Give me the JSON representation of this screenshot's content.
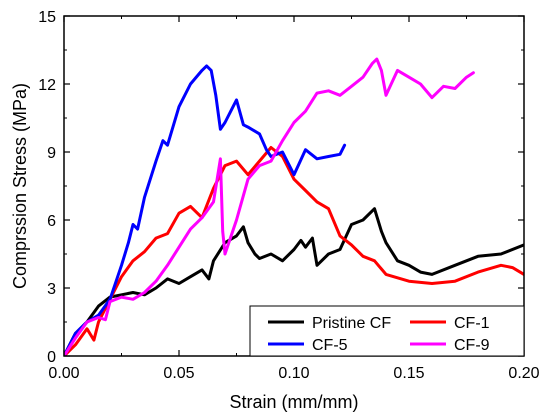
{
  "chart_data": {
    "type": "line",
    "title": "",
    "xlabel": "Strain (mm/mm)",
    "ylabel": "Comprssion Stress (MPa)",
    "xlim": [
      0.0,
      0.2
    ],
    "ylim": [
      0,
      15
    ],
    "xticks": [
      0.0,
      0.05,
      0.1,
      0.15,
      0.2
    ],
    "xtick_labels": [
      "0.00",
      "0.05",
      "0.10",
      "0.15",
      "0.20"
    ],
    "yticks": [
      0,
      3,
      6,
      9,
      12,
      15
    ],
    "ytick_labels": [
      "0",
      "3",
      "6",
      "9",
      "12",
      "15"
    ],
    "grid": false,
    "legend_position": "bottom-right",
    "series": [
      {
        "name": "Pristine CF",
        "color": "#000000",
        "x": [
          0.0,
          0.005,
          0.01,
          0.015,
          0.02,
          0.025,
          0.03,
          0.035,
          0.04,
          0.045,
          0.05,
          0.055,
          0.06,
          0.063,
          0.065,
          0.07,
          0.075,
          0.078,
          0.08,
          0.083,
          0.085,
          0.09,
          0.095,
          0.1,
          0.103,
          0.105,
          0.108,
          0.11,
          0.115,
          0.12,
          0.125,
          0.13,
          0.135,
          0.138,
          0.14,
          0.145,
          0.15,
          0.155,
          0.16,
          0.17,
          0.18,
          0.19,
          0.2
        ],
        "y": [
          0.0,
          1.0,
          1.5,
          2.2,
          2.6,
          2.7,
          2.8,
          2.7,
          3.0,
          3.4,
          3.2,
          3.5,
          3.8,
          3.4,
          4.2,
          5.0,
          5.3,
          5.7,
          5.0,
          4.5,
          4.3,
          4.5,
          4.2,
          4.7,
          5.1,
          4.8,
          5.2,
          4.0,
          4.5,
          4.7,
          5.8,
          6.0,
          6.5,
          5.5,
          5.0,
          4.2,
          4.0,
          3.7,
          3.6,
          4.0,
          4.4,
          4.5,
          4.9
        ]
      },
      {
        "name": "CF-1",
        "color": "#ff0000",
        "x": [
          0.0,
          0.005,
          0.01,
          0.013,
          0.015,
          0.02,
          0.025,
          0.03,
          0.035,
          0.04,
          0.045,
          0.05,
          0.055,
          0.06,
          0.065,
          0.07,
          0.075,
          0.08,
          0.085,
          0.09,
          0.095,
          0.1,
          0.105,
          0.11,
          0.115,
          0.12,
          0.125,
          0.13,
          0.135,
          0.14,
          0.15,
          0.16,
          0.17,
          0.18,
          0.19,
          0.195,
          0.2
        ],
        "y": [
          0.0,
          0.5,
          1.2,
          0.7,
          1.5,
          2.5,
          3.5,
          4.2,
          4.6,
          5.2,
          5.4,
          6.3,
          6.6,
          6.1,
          7.4,
          8.4,
          8.6,
          8.0,
          8.6,
          9.2,
          8.8,
          7.8,
          7.3,
          6.8,
          6.5,
          5.3,
          4.9,
          4.4,
          4.2,
          3.6,
          3.3,
          3.2,
          3.3,
          3.7,
          4.0,
          3.9,
          3.6
        ]
      },
      {
        "name": "CF-5",
        "color": "#0000ff",
        "x": [
          0.0,
          0.005,
          0.01,
          0.015,
          0.02,
          0.025,
          0.028,
          0.03,
          0.032,
          0.035,
          0.04,
          0.043,
          0.045,
          0.05,
          0.055,
          0.06,
          0.062,
          0.064,
          0.066,
          0.068,
          0.07,
          0.073,
          0.075,
          0.078,
          0.08,
          0.085,
          0.088,
          0.09,
          0.095,
          0.1,
          0.105,
          0.11,
          0.115,
          0.12,
          0.122
        ],
        "y": [
          0.0,
          1.0,
          1.5,
          1.8,
          2.5,
          4.0,
          5.0,
          5.8,
          5.6,
          7.0,
          8.6,
          9.5,
          9.3,
          11.0,
          12.0,
          12.6,
          12.8,
          12.6,
          11.5,
          10.0,
          10.3,
          10.9,
          11.3,
          10.2,
          10.1,
          9.8,
          9.1,
          8.8,
          9.0,
          8.0,
          9.1,
          8.7,
          8.8,
          8.9,
          9.3
        ]
      },
      {
        "name": "CF-9",
        "color": "#ff00ff",
        "x": [
          0.0,
          0.005,
          0.01,
          0.015,
          0.018,
          0.02,
          0.025,
          0.03,
          0.035,
          0.04,
          0.045,
          0.05,
          0.055,
          0.06,
          0.065,
          0.068,
          0.069,
          0.07,
          0.075,
          0.08,
          0.085,
          0.09,
          0.095,
          0.1,
          0.105,
          0.11,
          0.115,
          0.12,
          0.125,
          0.13,
          0.134,
          0.136,
          0.138,
          0.14,
          0.145,
          0.15,
          0.155,
          0.16,
          0.165,
          0.17,
          0.175,
          0.178
        ],
        "y": [
          0.0,
          0.8,
          1.5,
          1.7,
          1.6,
          2.4,
          2.6,
          2.5,
          2.8,
          3.3,
          4.0,
          4.8,
          5.6,
          6.1,
          6.8,
          8.7,
          5.5,
          4.5,
          6.0,
          7.8,
          8.4,
          8.6,
          9.5,
          10.3,
          10.8,
          11.6,
          11.7,
          11.5,
          11.9,
          12.3,
          12.9,
          13.1,
          12.6,
          11.5,
          12.6,
          12.3,
          12.0,
          11.4,
          11.9,
          11.8,
          12.3,
          12.5
        ]
      }
    ]
  }
}
